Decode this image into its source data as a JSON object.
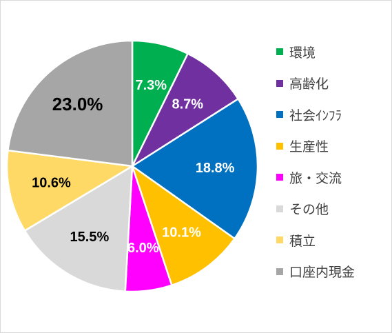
{
  "chart_data": {
    "type": "pie",
    "start_angle_deg": 0,
    "direction": "clockwise",
    "slices": [
      {
        "label": "環境",
        "value": 7.3,
        "value_label": "7.3%",
        "color": "#00b050",
        "label_color": "#ffffff"
      },
      {
        "label": "高齢化",
        "value": 8.7,
        "value_label": "8.7%",
        "color": "#7030a0",
        "label_color": "#ffffff"
      },
      {
        "label": "社会ｲﾝﾌﾗ",
        "value": 18.8,
        "value_label": "18.8%",
        "color": "#0070c0",
        "label_color": "#ffffff"
      },
      {
        "label": "生産性",
        "value": 10.1,
        "value_label": "10.1%",
        "color": "#ffc000",
        "label_color": "#ffffff"
      },
      {
        "label": "旅・交流",
        "value": 6.0,
        "value_label": "6.0%",
        "color": "#ff00ff",
        "label_color": "#ffffff"
      },
      {
        "label": "その他",
        "value": 15.5,
        "value_label": "15.5%",
        "color": "#d9d9d9",
        "label_color": "#000000"
      },
      {
        "label": "積立",
        "value": 10.6,
        "value_label": "10.6%",
        "color": "#ffd966",
        "label_color": "#000000"
      },
      {
        "label": "口座内現金",
        "value": 23.0,
        "value_label": "23.0%",
        "color": "#a6a6a6",
        "label_color": "#000000"
      }
    ],
    "legend_position": "right"
  }
}
